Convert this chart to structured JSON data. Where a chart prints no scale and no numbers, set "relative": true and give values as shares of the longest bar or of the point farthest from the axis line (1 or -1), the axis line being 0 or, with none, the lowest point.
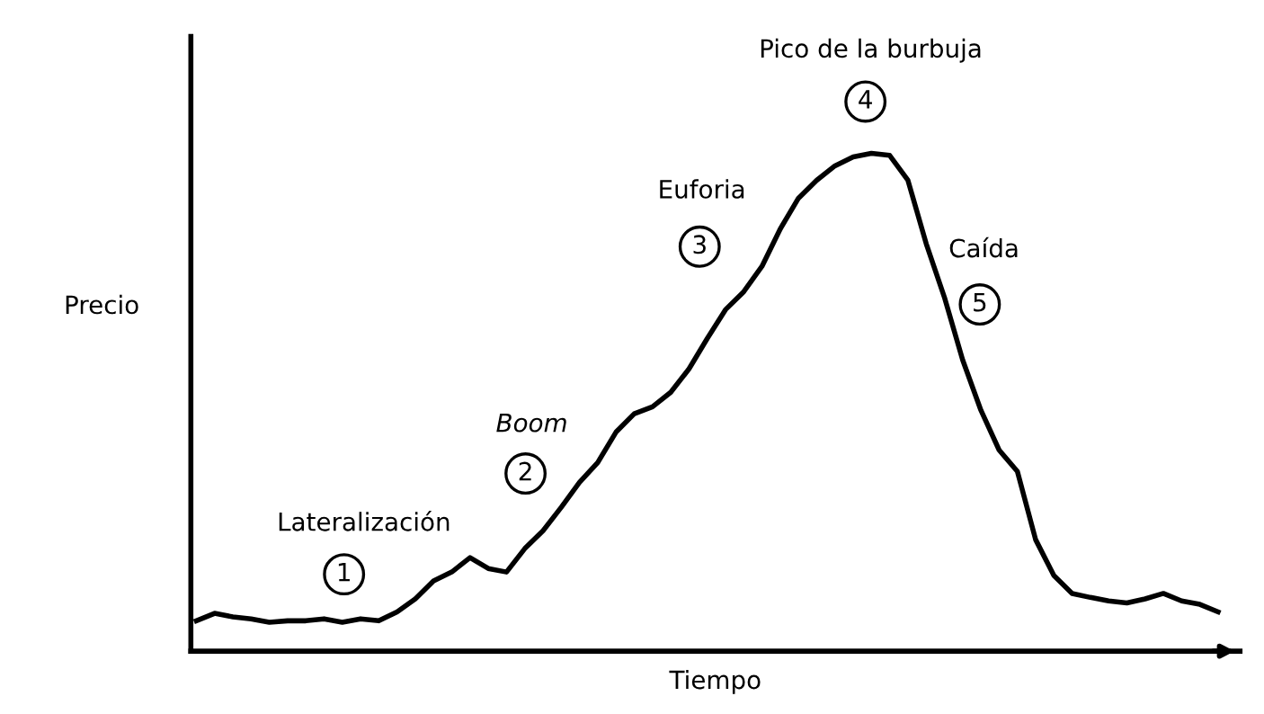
{
  "chart_data": {
    "type": "line",
    "relative": true,
    "xlabel": "Tiempo",
    "ylabel": "Precio",
    "color": "#000000",
    "grid": false,
    "legend": false,
    "marker": "none",
    "line_style": "solid",
    "categories": [
      null,
      null,
      null,
      null,
      null,
      null,
      null,
      null,
      null,
      null,
      null,
      null,
      null,
      null,
      null,
      null,
      null,
      null,
      null,
      null,
      null,
      null,
      null,
      null,
      null,
      null,
      null,
      null,
      null,
      null,
      null,
      null,
      null,
      null,
      null,
      null,
      null,
      null,
      null,
      null,
      null,
      null,
      null,
      null,
      null,
      null,
      null,
      null,
      null,
      null,
      null,
      null,
      null,
      null,
      null,
      null,
      null
    ],
    "values": [
      0.061,
      0.076,
      0.069,
      0.065,
      0.058,
      0.061,
      0.061,
      0.065,
      0.058,
      0.065,
      0.061,
      0.079,
      0.105,
      0.141,
      0.159,
      0.188,
      0.166,
      0.159,
      0.206,
      0.242,
      0.289,
      0.339,
      0.379,
      0.44,
      0.477,
      0.491,
      0.52,
      0.567,
      0.628,
      0.686,
      0.722,
      0.773,
      0.848,
      0.91,
      0.946,
      0.975,
      0.993,
      1,
      0.996,
      0.946,
      0.819,
      0.711,
      0.585,
      0.484,
      0.404,
      0.361,
      0.224,
      0.152,
      0.116,
      0.108,
      0.101,
      0.097,
      0.105,
      0.116,
      0.101,
      0.094,
      0.079
    ],
    "annotations": [
      "Lateralización",
      "1",
      "Boom",
      "2",
      "Euforia",
      "3",
      "Pico de la burbuja",
      "4",
      "Caída",
      "5"
    ]
  }
}
